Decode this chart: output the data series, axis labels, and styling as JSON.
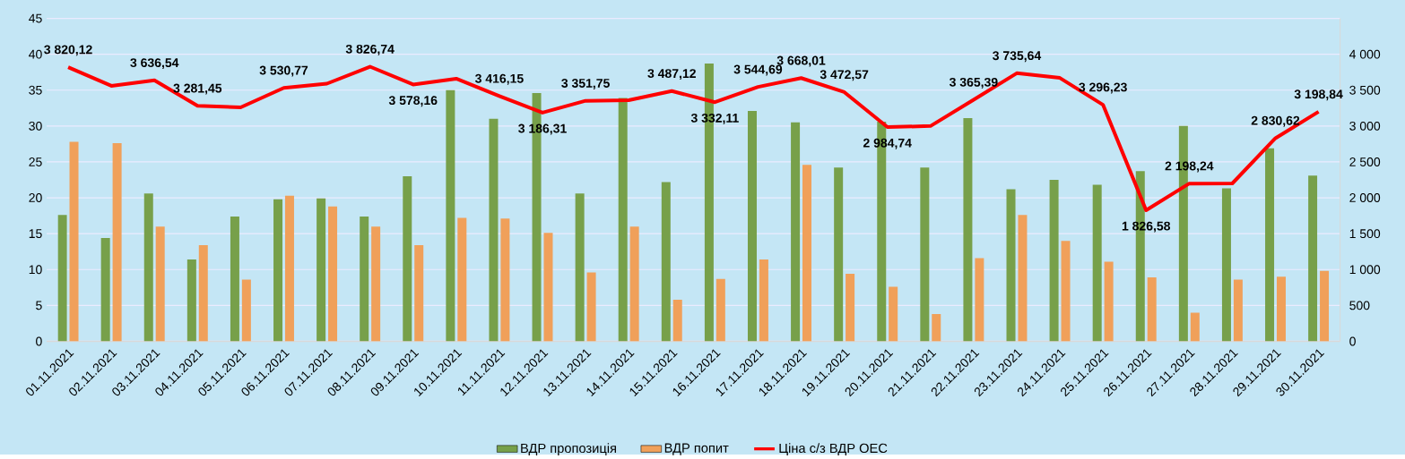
{
  "chart_data": {
    "type": "bar",
    "categories": [
      "01.11.2021",
      "02.11.2021",
      "03.11.2021",
      "04.11.2021",
      "05.11.2021",
      "06.11.2021",
      "07.11.2021",
      "08.11.2021",
      "09.11.2021",
      "10.11.2021",
      "11.11.2021",
      "12.11.2021",
      "13.11.2021",
      "14.11.2021",
      "15.11.2021",
      "16.11.2021",
      "17.11.2021",
      "18.11.2021",
      "19.11.2021",
      "20.11.2021",
      "21.11.2021",
      "22.11.2021",
      "23.11.2021",
      "24.11.2021",
      "25.11.2021",
      "26.11.2021",
      "27.11.2021",
      "28.11.2021",
      "29.11.2021",
      "30.11.2021"
    ],
    "series": [
      {
        "name": "ВДР пропозиція",
        "color": "#77a04a",
        "values": [
          17.6,
          14.4,
          20.6,
          11.4,
          17.4,
          19.8,
          19.9,
          17.4,
          23.0,
          35.0,
          31.0,
          34.6,
          20.6,
          33.9,
          22.2,
          38.7,
          32.1,
          30.5,
          24.2,
          30.6,
          24.2,
          31.1,
          21.2,
          22.5,
          21.8,
          23.7,
          30.0,
          21.3,
          26.9,
          23.1
        ]
      },
      {
        "name": "ВДР попит",
        "color": "#f0a05a",
        "values": [
          27.8,
          27.6,
          16.0,
          13.4,
          8.6,
          20.3,
          18.8,
          16.0,
          13.4,
          17.2,
          17.1,
          15.1,
          9.6,
          16.0,
          5.8,
          8.7,
          11.4,
          24.6,
          9.4,
          7.6,
          3.8,
          11.6,
          17.6,
          14.0,
          11.1,
          8.9,
          4.0,
          8.6,
          9.0,
          9.8
        ]
      },
      {
        "name": "Ціна с/з ВДР ОЕС",
        "type": "line",
        "axis": "y2",
        "color": "#ff0000",
        "values": [
          3820.12,
          3560,
          3636.54,
          3281.45,
          3260,
          3530.77,
          3590,
          3826.74,
          3578.16,
          3660,
          3416.15,
          3186.31,
          3351.75,
          3360,
          3487.12,
          3332.11,
          3544.69,
          3668.01,
          3472.57,
          2984.74,
          3000,
          3365.39,
          3735.64,
          3670,
          3296.23,
          1826.58,
          2198.24,
          2200,
          2830.62,
          3198.84
        ],
        "value_labels": [
          "3 820,12",
          null,
          "3 636,54",
          "3 281,45",
          null,
          "3 530,77",
          null,
          "3 826,74",
          "3 578,16",
          null,
          "3 416,15",
          "3 186,31",
          "3 351,75",
          null,
          "3 487,12",
          "3 332,11",
          "3 544,69",
          "3 668,01",
          "3 472,57",
          "2 984,74",
          null,
          "3 365,39",
          "3 735,64",
          null,
          "3 296,23",
          "1 826,58",
          "2 198,24",
          null,
          "2 830,62",
          "3 198,84"
        ]
      }
    ],
    "ylim": [
      0,
      45
    ],
    "yticks": [
      0,
      5,
      10,
      15,
      20,
      25,
      30,
      35,
      40,
      45
    ],
    "y2lim": [
      0,
      4500
    ],
    "y2ticks": [
      0,
      500,
      {
        "value": 1000,
        "label": "1 000"
      },
      {
        "value": 1500,
        "label": "1 500"
      },
      {
        "value": 2000,
        "label": "2 000"
      },
      {
        "value": 2500,
        "label": "2 500"
      },
      {
        "value": 3000,
        "label": "3 000"
      },
      {
        "value": 3500,
        "label": "3 500"
      },
      {
        "value": 4000,
        "label": "4 000"
      }
    ],
    "grid": "y",
    "legend": "bottom"
  }
}
